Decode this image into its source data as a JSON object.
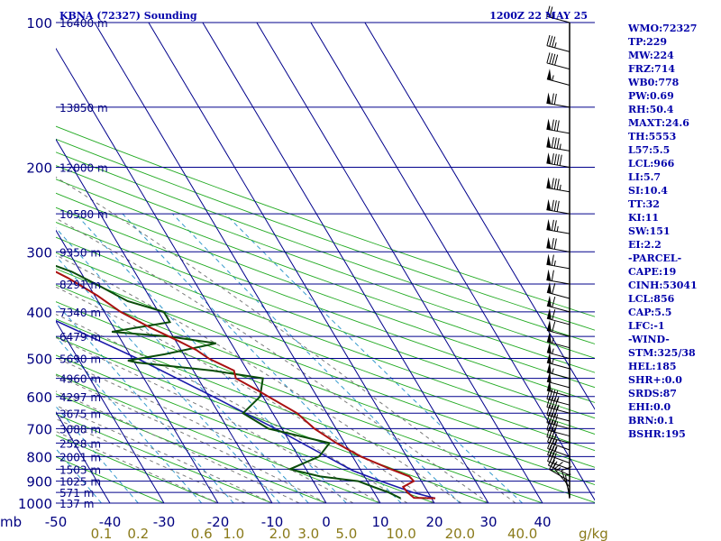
{
  "header": {
    "station": "KBNA (72327) Sounding",
    "time": "1200Z 22 MAY 25"
  },
  "units": {
    "pressure": "mb",
    "mixing_ratio": "g/kg"
  },
  "indices": [
    "WMO:72327",
    "TP:229",
    "MW:224",
    "FRZ:714",
    "WB0:778",
    "PW:0.69",
    "RH:50.4",
    "MAXT:24.6",
    "TH:5553",
    "L57:5.5",
    "LCL:966",
    "LI:5.7",
    "SI:10.4",
    "TT:32",
    "KI:11",
    "SW:151",
    "EI:2.2",
    "-PARCEL-",
    "CAPE:19",
    "CINH:53041",
    "LCL:856",
    "CAP:5.5",
    "LFC:-1",
    "-WIND-",
    "STM:325/38",
    "HEL:185",
    "SHR+:0.0",
    "SRDS:87",
    "EHI:0.0",
    "BRN:0.1",
    "BSHR:195"
  ],
  "colors": {
    "isobar": "#00008b",
    "isotherm": "#00008b",
    "dry_adiabat": "#22aa22",
    "moist_adiabat": "#7a7a7a",
    "mixing_ratio": "#3399cc",
    "temperature": "#aa1111",
    "dewpoint": "#0a4d0a",
    "parcel": "#1a1aaa",
    "axis_text": "#000080",
    "mixing_text": "#8a7a1a"
  },
  "chart_data": {
    "type": "skew-t",
    "pressure_levels_mb": [
      100,
      200,
      300,
      400,
      500,
      600,
      700,
      800,
      900,
      1000
    ],
    "pressure_labels": [
      "100",
      "200",
      "300",
      "400",
      "500",
      "600",
      "700",
      "800",
      "900",
      "1000"
    ],
    "temperature_ticks_c": [
      -50,
      -40,
      -30,
      -20,
      -10,
      0,
      10,
      20,
      30,
      40
    ],
    "temperature_labels": [
      "-50",
      "-40",
      "-30",
      "-20",
      "-10",
      "0",
      "10",
      "20",
      "30",
      "40"
    ],
    "mixing_ratio_ticks": [
      {
        "label": "0.1",
        "value": 0.1
      },
      {
        "label": "0.2",
        "value": 0.2
      },
      {
        "label": "0.6",
        "value": 0.6
      },
      {
        "label": "1.0",
        "value": 1.0
      },
      {
        "label": "2.0",
        "value": 2.0
      },
      {
        "label": "3.0",
        "value": 3.0
      },
      {
        "label": "5.0",
        "value": 5.0
      },
      {
        "label": "10.0",
        "value": 10.0
      },
      {
        "label": "20.0",
        "value": 20.0
      },
      {
        "label": "40.0",
        "value": 40.0
      }
    ],
    "height_labels": [
      {
        "p": 100,
        "label": "16400 m"
      },
      {
        "p": 150,
        "label": "13850 m"
      },
      {
        "p": 200,
        "label": "12000 m"
      },
      {
        "p": 250,
        "label": "10580 m"
      },
      {
        "p": 300,
        "label": "9350 m"
      },
      {
        "p": 350,
        "label": "8291 m"
      },
      {
        "p": 400,
        "label": "7340 m"
      },
      {
        "p": 450,
        "label": "6479 m"
      },
      {
        "p": 500,
        "label": "5690 m"
      },
      {
        "p": 550,
        "label": "4960 m"
      },
      {
        "p": 600,
        "label": "4297 m"
      },
      {
        "p": 650,
        "label": "3675 m"
      },
      {
        "p": 700,
        "label": "3088 m"
      },
      {
        "p": 750,
        "label": "2528 m"
      },
      {
        "p": 800,
        "label": "2001 m"
      },
      {
        "p": 850,
        "label": "1503 m"
      },
      {
        "p": 900,
        "label": "1025 m"
      },
      {
        "p": 950,
        "label": "571 m"
      },
      {
        "p": 1000,
        "label": "137 m"
      }
    ],
    "temperature_profile": [
      {
        "p": 977,
        "t": 20.7
      },
      {
        "p": 975,
        "t": 16.8
      },
      {
        "p": 950,
        "t": 16.2
      },
      {
        "p": 925,
        "t": 16.0
      },
      {
        "p": 900,
        "t": 18.6
      },
      {
        "p": 880,
        "t": 18.3
      },
      {
        "p": 850,
        "t": 15.7
      },
      {
        "p": 800,
        "t": 11.5
      },
      {
        "p": 750,
        "t": 8.5
      },
      {
        "p": 700,
        "t": 6.0
      },
      {
        "p": 650,
        "t": 4.5
      },
      {
        "p": 600,
        "t": 1.0
      },
      {
        "p": 580,
        "t": -0.5
      },
      {
        "p": 550,
        "t": -3.0
      },
      {
        "p": 530,
        "t": -2.5
      },
      {
        "p": 500,
        "t": -5.8
      },
      {
        "p": 480,
        "t": -7.2
      },
      {
        "p": 460,
        "t": -9.5
      },
      {
        "p": 430,
        "t": -13.4
      },
      {
        "p": 400,
        "t": -17.0
      },
      {
        "p": 370,
        "t": -19.5
      },
      {
        "p": 340,
        "t": -23.0
      },
      {
        "p": 300,
        "t": -29.6
      },
      {
        "p": 270,
        "t": -32.5
      },
      {
        "p": 250,
        "t": -37.0
      },
      {
        "p": 230,
        "t": -41.8
      },
      {
        "p": 226,
        "t": -43.5
      },
      {
        "p": 220,
        "t": -42.0
      },
      {
        "p": 210,
        "t": -40.5
      },
      {
        "p": 200,
        "t": -40.7
      },
      {
        "p": 185,
        "t": -41.7
      },
      {
        "p": 175,
        "t": -42.2
      },
      {
        "p": 165,
        "t": -44.5
      },
      {
        "p": 150,
        "t": -45.2
      },
      {
        "p": 140,
        "t": -46.3
      },
      {
        "p": 130,
        "t": -49.0
      },
      {
        "p": 115,
        "t": -53.2
      },
      {
        "p": 100,
        "t": -59.7
      }
    ],
    "dewpoint_profile": [
      {
        "p": 977,
        "td": 14.3
      },
      {
        "p": 950,
        "td": 12.7
      },
      {
        "p": 925,
        "td": 10.5
      },
      {
        "p": 900,
        "td": 8.3
      },
      {
        "p": 880,
        "td": 1.8
      },
      {
        "p": 850,
        "td": -3.0
      },
      {
        "p": 800,
        "td": 3.8
      },
      {
        "p": 750,
        "td": 7.2
      },
      {
        "p": 700,
        "td": -2.5
      },
      {
        "p": 650,
        "td": -5.5
      },
      {
        "p": 600,
        "td": -0.5
      },
      {
        "p": 550,
        "td": 2.0
      },
      {
        "p": 530,
        "td": -6.5
      },
      {
        "p": 510,
        "td": -19.5
      },
      {
        "p": 505,
        "td": -21.0
      },
      {
        "p": 490,
        "td": -13.5
      },
      {
        "p": 465,
        "td": -2.8
      },
      {
        "p": 450,
        "td": -10.7
      },
      {
        "p": 440,
        "td": -20.8
      },
      {
        "p": 420,
        "td": -9.0
      },
      {
        "p": 400,
        "td": -9.0
      },
      {
        "p": 380,
        "td": -14.5
      },
      {
        "p": 350,
        "td": -18.5
      },
      {
        "p": 330,
        "td": -21.6
      },
      {
        "p": 300,
        "td": -29.6
      },
      {
        "p": 285,
        "td": -30.5
      },
      {
        "p": 270,
        "td": -35.5
      },
      {
        "p": 250,
        "td": -42.5
      },
      {
        "p": 235,
        "td": -49.0
      },
      {
        "p": 225,
        "td": -56.5
      },
      {
        "p": 215,
        "td": -57.0
      },
      {
        "p": 205,
        "td": -54.5
      },
      {
        "p": 195,
        "td": -56.0
      },
      {
        "p": 185,
        "td": -57.0
      },
      {
        "p": 175,
        "td": -60.0
      },
      {
        "p": 165,
        "td": -62.5
      },
      {
        "p": 150,
        "td": -68.0
      },
      {
        "p": 130,
        "td": -72.0
      },
      {
        "p": 115,
        "td": -74.0
      },
      {
        "p": 100,
        "td": -78.0
      }
    ],
    "parcel_profile": [
      {
        "p": 977,
        "t": 20.7
      },
      {
        "p": 950,
        "t": 17.2
      },
      {
        "p": 900,
        "t": 12.5
      },
      {
        "p": 856,
        "t": 8.5
      },
      {
        "p": 800,
        "t": 5.2
      },
      {
        "p": 700,
        "t": -1.2
      },
      {
        "p": 600,
        "t": -9.2
      },
      {
        "p": 500,
        "t": -19.0
      },
      {
        "p": 400,
        "t": -32.5
      },
      {
        "p": 300,
        "t": -51.0
      },
      {
        "p": 200,
        "t": -77.0
      },
      {
        "p": 150,
        "t": -96.0
      },
      {
        "p": 125,
        "t": -108.0
      }
    ],
    "wind_profile": [
      {
        "p": 977,
        "dir": 350,
        "kt": 5
      },
      {
        "p": 950,
        "dir": 340,
        "kt": 12
      },
      {
        "p": 925,
        "dir": 320,
        "kt": 15
      },
      {
        "p": 900,
        "dir": 300,
        "kt": 20
      },
      {
        "p": 875,
        "dir": 295,
        "kt": 25
      },
      {
        "p": 850,
        "dir": 290,
        "kt": 30
      },
      {
        "p": 825,
        "dir": 290,
        "kt": 30
      },
      {
        "p": 800,
        "dir": 290,
        "kt": 35
      },
      {
        "p": 775,
        "dir": 290,
        "kt": 35
      },
      {
        "p": 750,
        "dir": 285,
        "kt": 35
      },
      {
        "p": 725,
        "dir": 285,
        "kt": 40
      },
      {
        "p": 700,
        "dir": 285,
        "kt": 40
      },
      {
        "p": 675,
        "dir": 285,
        "kt": 40
      },
      {
        "p": 650,
        "dir": 285,
        "kt": 45
      },
      {
        "p": 625,
        "dir": 285,
        "kt": 45
      },
      {
        "p": 600,
        "dir": 285,
        "kt": 50
      },
      {
        "p": 575,
        "dir": 285,
        "kt": 50
      },
      {
        "p": 550,
        "dir": 285,
        "kt": 55
      },
      {
        "p": 525,
        "dir": 285,
        "kt": 55
      },
      {
        "p": 500,
        "dir": 285,
        "kt": 55
      },
      {
        "p": 475,
        "dir": 285,
        "kt": 55
      },
      {
        "p": 450,
        "dir": 285,
        "kt": 60
      },
      {
        "p": 425,
        "dir": 285,
        "kt": 60
      },
      {
        "p": 400,
        "dir": 285,
        "kt": 60
      },
      {
        "p": 375,
        "dir": 285,
        "kt": 60
      },
      {
        "p": 350,
        "dir": 280,
        "kt": 60
      },
      {
        "p": 325,
        "dir": 280,
        "kt": 65
      },
      {
        "p": 300,
        "dir": 280,
        "kt": 70
      },
      {
        "p": 275,
        "dir": 280,
        "kt": 75
      },
      {
        "p": 250,
        "dir": 280,
        "kt": 80
      },
      {
        "p": 225,
        "dir": 280,
        "kt": 85
      },
      {
        "p": 200,
        "dir": 280,
        "kt": 90
      },
      {
        "p": 185,
        "dir": 280,
        "kt": 85
      },
      {
        "p": 170,
        "dir": 280,
        "kt": 80
      },
      {
        "p": 150,
        "dir": 280,
        "kt": 70
      },
      {
        "p": 135,
        "dir": 285,
        "kt": 55
      },
      {
        "p": 125,
        "dir": 285,
        "kt": 40
      },
      {
        "p": 115,
        "dir": 285,
        "kt": 35
      },
      {
        "p": 100,
        "dir": 285,
        "kt": 25
      }
    ],
    "dry_adiabats_theta_c": [
      -30,
      -20,
      -10,
      0,
      10,
      20,
      30,
      40,
      50,
      60,
      70,
      80,
      90,
      100,
      110,
      120,
      130,
      140,
      150,
      160,
      170
    ],
    "moist_adiabats_thetaw_c": [
      -20,
      -15,
      -10,
      -5,
      0,
      5,
      10,
      15,
      20,
      25,
      30,
      35
    ]
  }
}
